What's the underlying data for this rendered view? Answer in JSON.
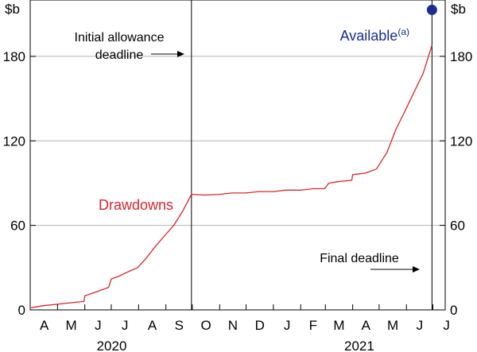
{
  "chart_data": {
    "type": "line",
    "ylabel_left": "$b",
    "ylabel_right": "$b",
    "ylim": [
      0,
      220
    ],
    "yticks": [
      0,
      60,
      120,
      180
    ],
    "grid": true,
    "x_axis": {
      "start": "2020-03-31",
      "end": "2021-07-15",
      "month_labels": [
        {
          "label": "A",
          "month": "2020-04"
        },
        {
          "label": "M",
          "month": "2020-05"
        },
        {
          "label": "J",
          "month": "2020-06"
        },
        {
          "label": "J",
          "month": "2020-07"
        },
        {
          "label": "A",
          "month": "2020-08"
        },
        {
          "label": "S",
          "month": "2020-09"
        },
        {
          "label": "O",
          "month": "2020-10"
        },
        {
          "label": "N",
          "month": "2020-11"
        },
        {
          "label": "D",
          "month": "2020-12"
        },
        {
          "label": "J",
          "month": "2021-01"
        },
        {
          "label": "F",
          "month": "2021-02"
        },
        {
          "label": "M",
          "month": "2021-03"
        },
        {
          "label": "A",
          "month": "2021-04"
        },
        {
          "label": "M",
          "month": "2021-05"
        },
        {
          "label": "J",
          "month": "2021-06"
        },
        {
          "label": "J",
          "month": "2021-07"
        }
      ],
      "year_labels": [
        {
          "label": "2020",
          "from": "2020-04",
          "to": "2020-09"
        },
        {
          "label": "2021",
          "from": "2021-01",
          "to": "2021-07"
        }
      ]
    },
    "series": [
      {
        "name": "Drawdowns",
        "color": "#d7262b",
        "points": [
          [
            "2020-04-01",
            1.5
          ],
          [
            "2020-04-15",
            3
          ],
          [
            "2020-05-01",
            4
          ],
          [
            "2020-05-15",
            5
          ],
          [
            "2020-05-31",
            6
          ],
          [
            "2020-06-01",
            10
          ],
          [
            "2020-06-15",
            13
          ],
          [
            "2020-06-28",
            16
          ],
          [
            "2020-07-01",
            22
          ],
          [
            "2020-07-10",
            24
          ],
          [
            "2020-07-20",
            27
          ],
          [
            "2020-07-31",
            30
          ],
          [
            "2020-08-10",
            37
          ],
          [
            "2020-08-20",
            45
          ],
          [
            "2020-08-31",
            53
          ],
          [
            "2020-09-10",
            60
          ],
          [
            "2020-09-20",
            70
          ],
          [
            "2020-09-30",
            82
          ],
          [
            "2020-10-15",
            81.5
          ],
          [
            "2020-11-01",
            82
          ],
          [
            "2020-11-15",
            83
          ],
          [
            "2020-12-01",
            83
          ],
          [
            "2020-12-15",
            84
          ],
          [
            "2021-01-01",
            84
          ],
          [
            "2021-01-15",
            85
          ],
          [
            "2021-02-01",
            85
          ],
          [
            "2021-02-15",
            86
          ],
          [
            "2021-02-28",
            86
          ],
          [
            "2021-03-05",
            90
          ],
          [
            "2021-03-15",
            91
          ],
          [
            "2021-03-31",
            92
          ],
          [
            "2021-04-01",
            96
          ],
          [
            "2021-04-15",
            97
          ],
          [
            "2021-04-28",
            100
          ],
          [
            "2021-05-10",
            112
          ],
          [
            "2021-05-20",
            128
          ],
          [
            "2021-05-31",
            142
          ],
          [
            "2021-06-10",
            155
          ],
          [
            "2021-06-20",
            168
          ],
          [
            "2021-06-30",
            188
          ]
        ]
      },
      {
        "name": "Available",
        "superscript": "(a)",
        "color": "#1a2e8f",
        "points": [
          [
            "2021-06-30",
            213
          ]
        ]
      }
    ],
    "vertical_lines": [
      {
        "date": "2020-09-30",
        "label": "Initial allowance deadline"
      },
      {
        "date": "2021-06-30",
        "label": "Final deadline"
      }
    ]
  }
}
